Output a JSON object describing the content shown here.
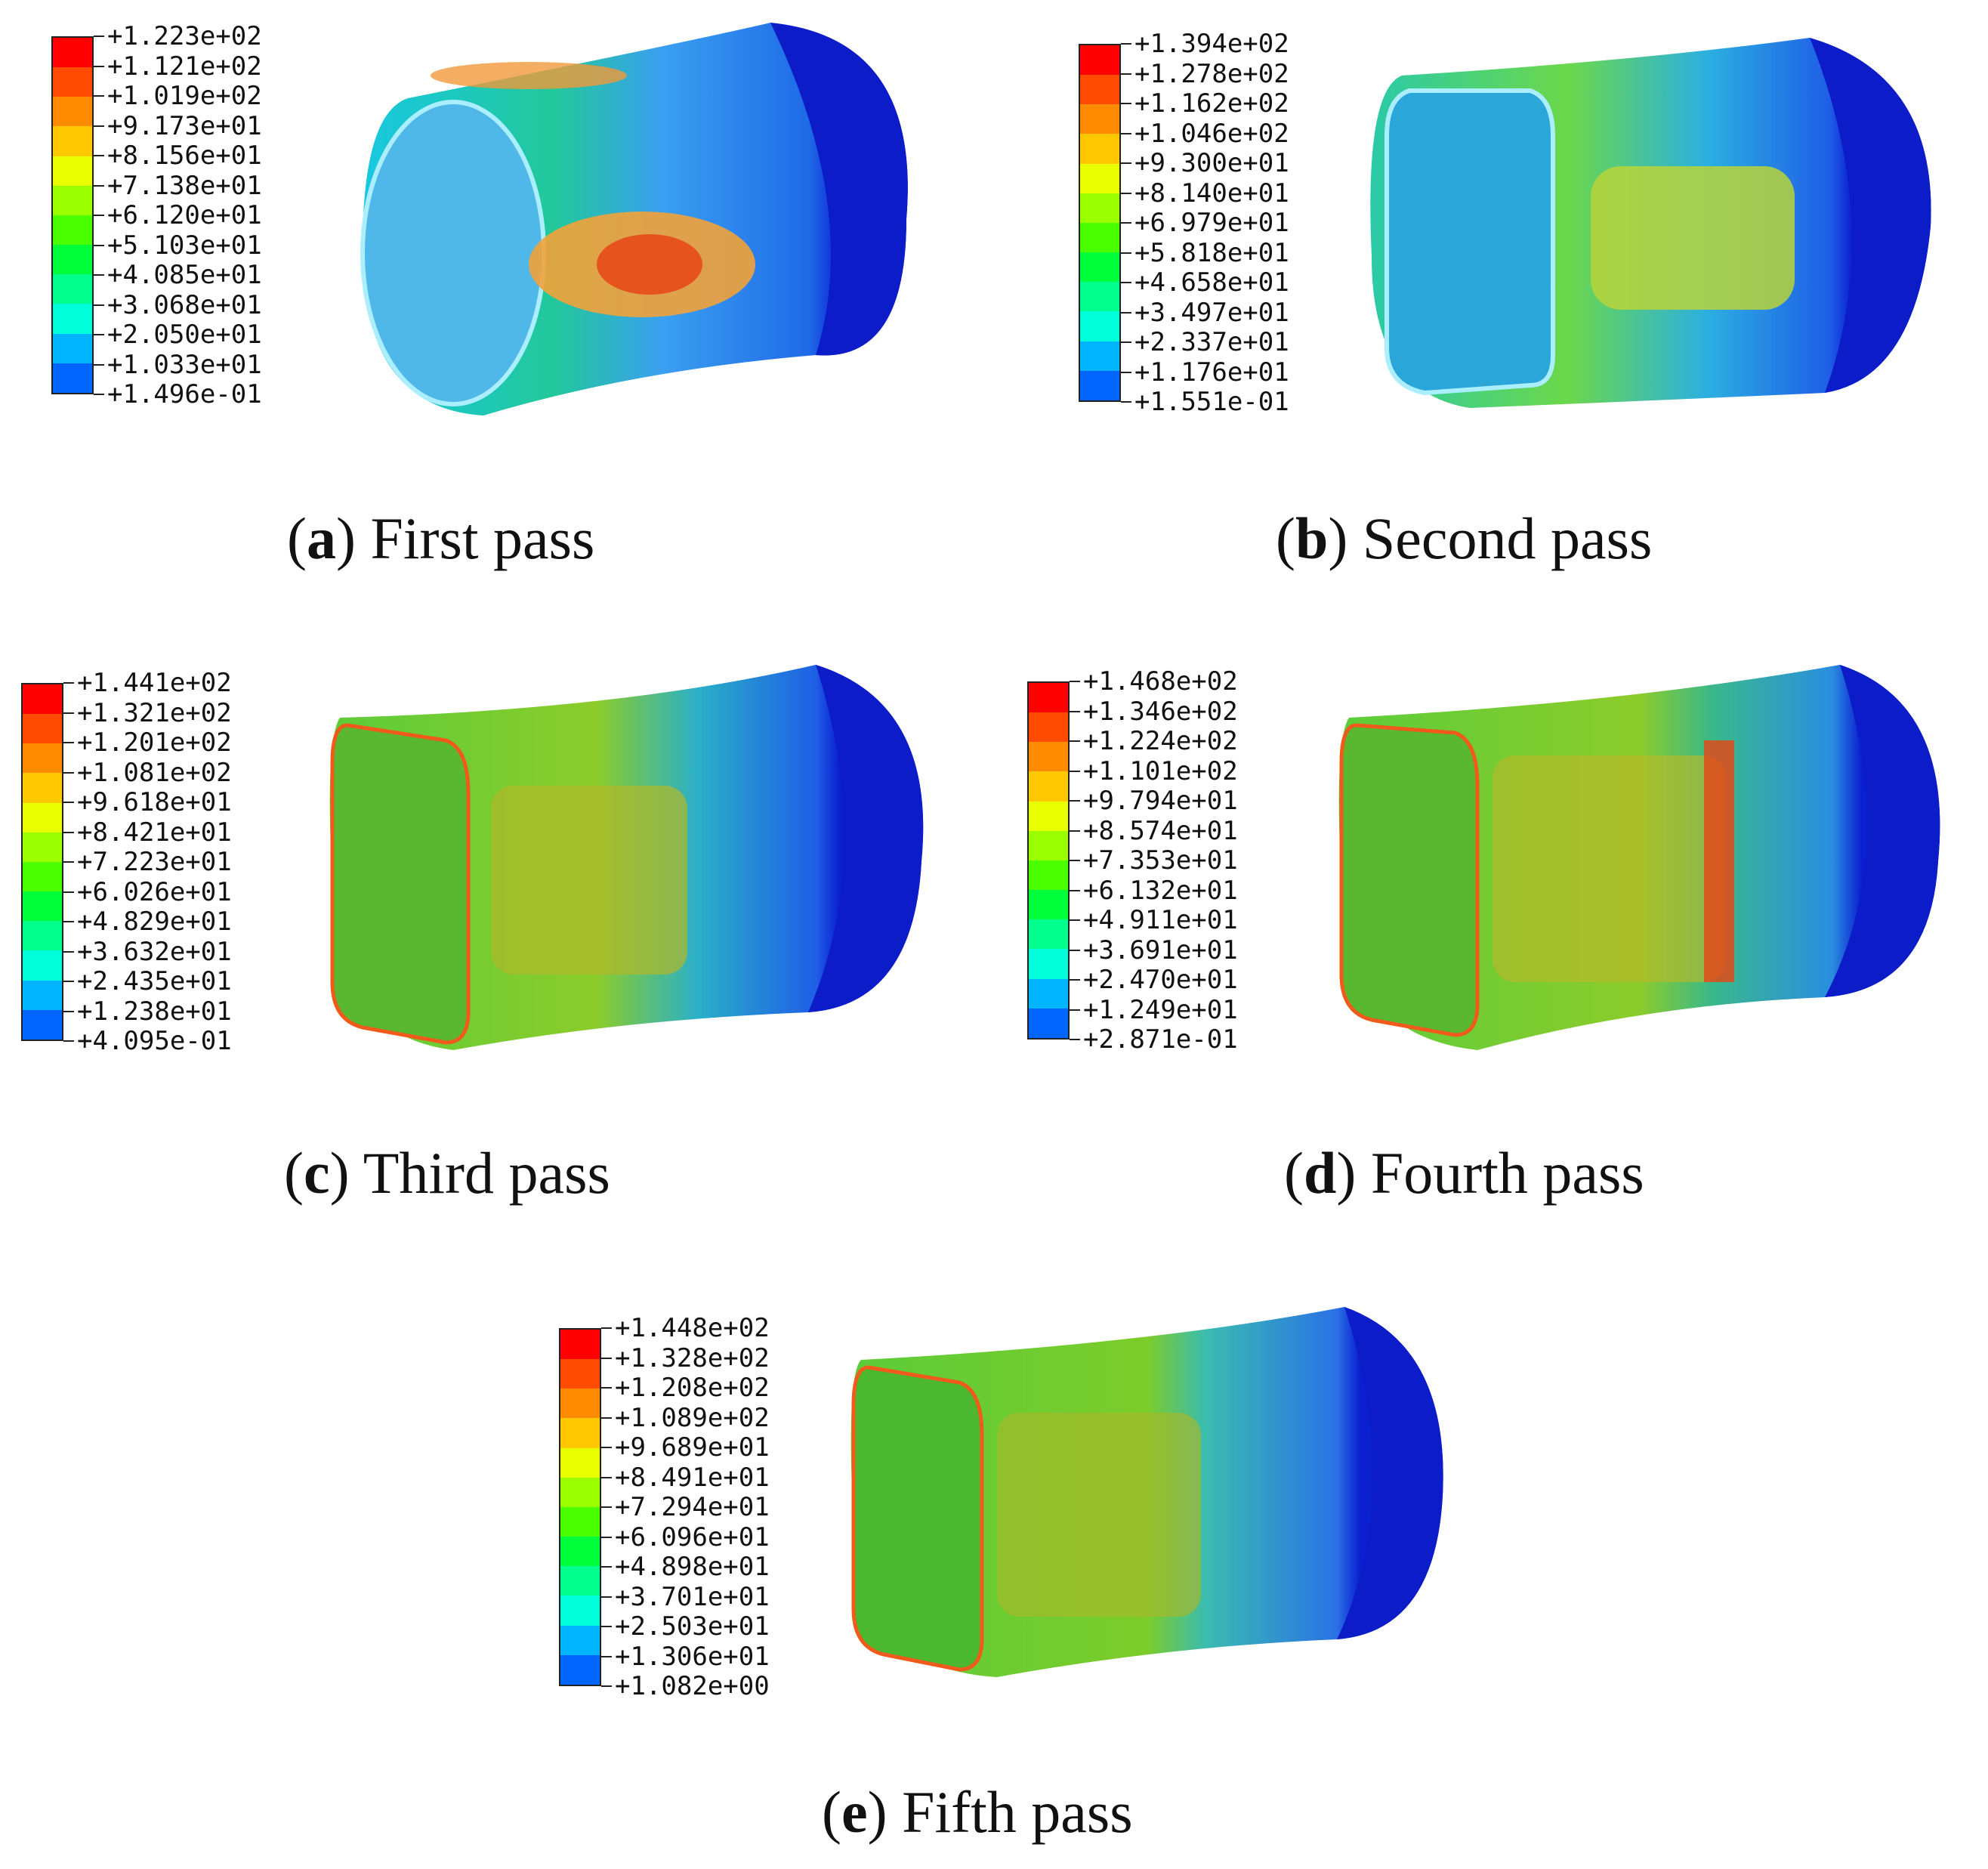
{
  "panels": [
    {
      "letter": "a",
      "caption": "First pass",
      "legend": [
        "+1.223e+02",
        "+1.121e+02",
        "+1.019e+02",
        "+9.173e+01",
        "+8.156e+01",
        "+7.138e+01",
        "+6.120e+01",
        "+5.103e+01",
        "+4.085e+01",
        "+3.068e+01",
        "+2.050e+01",
        "+1.033e+01",
        "+1.496e-01"
      ]
    },
    {
      "letter": "b",
      "caption": "Second pass",
      "legend": [
        "+1.394e+02",
        "+1.278e+02",
        "+1.162e+02",
        "+1.046e+02",
        "+9.300e+01",
        "+8.140e+01",
        "+6.979e+01",
        "+5.818e+01",
        "+4.658e+01",
        "+3.497e+01",
        "+2.337e+01",
        "+1.176e+01",
        "+1.551e-01"
      ]
    },
    {
      "letter": "c",
      "caption": "Third pass",
      "legend": [
        "+1.441e+02",
        "+1.321e+02",
        "+1.201e+02",
        "+1.081e+02",
        "+9.618e+01",
        "+8.421e+01",
        "+7.223e+01",
        "+6.026e+01",
        "+4.829e+01",
        "+3.632e+01",
        "+2.435e+01",
        "+1.238e+01",
        "+4.095e-01"
      ]
    },
    {
      "letter": "d",
      "caption": "Fourth pass",
      "legend": [
        "+1.468e+02",
        "+1.346e+02",
        "+1.224e+02",
        "+1.101e+02",
        "+9.794e+01",
        "+8.574e+01",
        "+7.353e+01",
        "+6.132e+01",
        "+4.911e+01",
        "+3.691e+01",
        "+2.470e+01",
        "+1.249e+01",
        "+2.871e-01"
      ]
    },
    {
      "letter": "e",
      "caption": "Fifth pass",
      "legend": [
        "+1.448e+02",
        "+1.328e+02",
        "+1.208e+02",
        "+1.089e+02",
        "+9.689e+01",
        "+8.491e+01",
        "+7.294e+01",
        "+6.096e+01",
        "+4.898e+01",
        "+3.701e+01",
        "+2.503e+01",
        "+1.306e+01",
        "+1.082e+00"
      ]
    }
  ],
  "colormap": [
    "#ff0000",
    "#ff4a00",
    "#ff8c00",
    "#ffc800",
    "#e8ff00",
    "#9cff00",
    "#4cff00",
    "#00ff3a",
    "#00ff8c",
    "#00ffd8",
    "#00b4ff",
    "#0064ff",
    "#0000ff"
  ]
}
